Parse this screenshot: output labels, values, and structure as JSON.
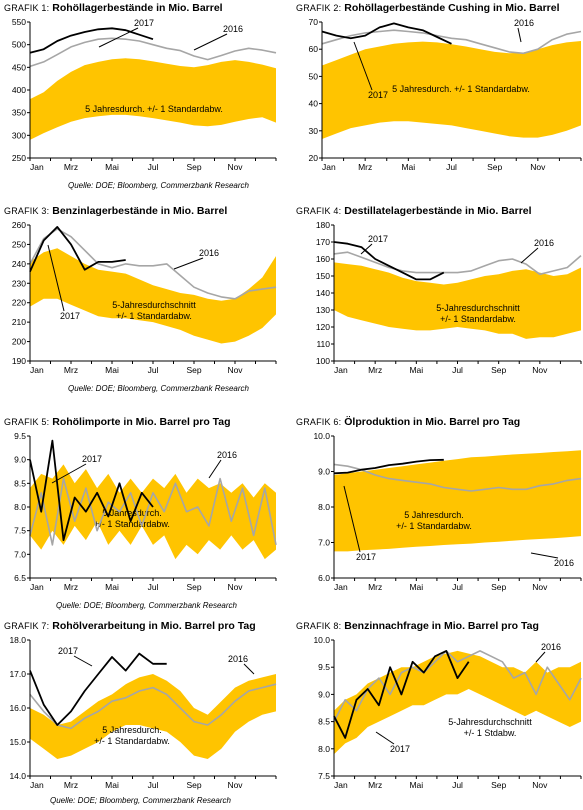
{
  "sources": {
    "row1": "Quelle: DOE; Bloomberg, Commerzbank Research",
    "row2": "Quelle: DOE; Bloomberg, Commerzbank Research",
    "row3": "Quelle: DOE; Bloomberg, Commerzbank Research",
    "row4": "Quelle: DOE; Bloomberg, Commerzbank Research"
  },
  "colors": {
    "band": "#FFC400",
    "y2017": "#000000",
    "y2016": "#A6A6A6",
    "axis": "#000000"
  },
  "chart_data": [
    {
      "type": "area",
      "prefix": "GRAFIK 1:",
      "title": "Rohöllagerbestände in Mio. Barrel",
      "x_ticks": [
        "Jan",
        "Mrz",
        "Mai",
        "Jul",
        "Sep",
        "Nov"
      ],
      "ylim": [
        250,
        550
      ],
      "y_ticks": [
        250,
        300,
        350,
        400,
        450,
        500,
        550
      ],
      "band_label": [
        "5 Jahresdurch. +/- 1 Standardabw."
      ],
      "band_upper": [
        380,
        395,
        420,
        440,
        455,
        462,
        468,
        470,
        468,
        463,
        458,
        453,
        450,
        455,
        462,
        466,
        462,
        456,
        448
      ],
      "band_lower": [
        290,
        305,
        318,
        330,
        338,
        342,
        345,
        345,
        342,
        338,
        333,
        328,
        322,
        320,
        323,
        330,
        336,
        340,
        328
      ],
      "series": [
        {
          "name": "2016",
          "values": [
            452,
            462,
            478,
            495,
            505,
            512,
            514,
            512,
            508,
            500,
            492,
            487,
            475,
            467,
            476,
            486,
            492,
            488,
            482
          ]
        },
        {
          "name": "2017",
          "values": [
            482,
            490,
            508,
            520,
            528,
            534,
            536,
            532,
            522,
            512,
            null,
            null,
            null,
            null,
            null,
            null,
            null,
            null,
            null
          ]
        }
      ],
      "annotations": [
        {
          "text": "2017",
          "series": "2017"
        },
        {
          "text": "2016",
          "series": "2016"
        }
      ]
    },
    {
      "type": "area",
      "prefix": "GRAFIK 2:",
      "title": "Rohöllagerbestände Cushing in Mio. Barrel",
      "x_ticks": [
        "Jan",
        "Mrz",
        "Mai",
        "Jul",
        "Sep",
        "Nov"
      ],
      "ylim": [
        20,
        70
      ],
      "y_ticks": [
        20,
        30,
        40,
        50,
        60,
        70
      ],
      "band_label": [
        "5 Jahresdurch. +/- 1 Standardabw."
      ],
      "band_upper": [
        54,
        56,
        58,
        60,
        61,
        62,
        62.5,
        62.8,
        62.5,
        61.8,
        61,
        60,
        59,
        58.5,
        58.8,
        60,
        61.5,
        62.5,
        63
      ],
      "band_lower": [
        27,
        29,
        31,
        32,
        33,
        33.5,
        33.5,
        33,
        32.5,
        32,
        31,
        30,
        29,
        28,
        27.5,
        27.5,
        28.5,
        30,
        32
      ],
      "series": [
        {
          "name": "2016",
          "values": [
            62,
            63.5,
            65,
            66,
            66.5,
            67,
            66.5,
            66,
            65,
            64,
            63.5,
            62,
            60.5,
            59,
            58.5,
            60,
            63.5,
            65.5,
            66.5
          ]
        },
        {
          "name": "2017",
          "values": [
            66.5,
            65,
            64,
            65,
            68,
            69.5,
            68,
            67,
            64.5,
            62,
            null,
            null,
            null,
            null,
            null,
            null,
            null,
            null,
            null
          ]
        }
      ],
      "annotations": [
        {
          "text": "2017",
          "series": "2017"
        },
        {
          "text": "2016",
          "series": "2016"
        }
      ]
    },
    {
      "type": "area",
      "prefix": "GRAFIK 3:",
      "title": "Benzinlagerbestände in Mio. Barrel",
      "x_ticks": [
        "Jan",
        "Mrz",
        "Mai",
        "Jul",
        "Sep",
        "Nov"
      ],
      "ylim": [
        190,
        260
      ],
      "y_ticks": [
        190,
        200,
        210,
        220,
        230,
        240,
        250,
        260
      ],
      "band_label": [
        "5-Jahresdurchschnitt",
        "+/- 1 Standardabw."
      ],
      "band_upper": [
        241,
        246,
        248,
        244,
        240,
        237,
        236,
        235,
        232,
        229,
        227,
        225,
        224,
        222,
        221,
        222,
        227,
        233,
        244
      ],
      "band_lower": [
        218,
        222,
        222,
        219,
        216,
        213,
        212,
        212,
        211,
        210,
        208,
        206,
        203,
        201,
        199,
        200,
        203,
        207,
        214
      ],
      "series": [
        {
          "name": "2016",
          "values": [
            240,
            253,
            258,
            254,
            247,
            240,
            238,
            240,
            239,
            239,
            240,
            234,
            228,
            225,
            223,
            222,
            226,
            227,
            228
          ]
        },
        {
          "name": "2017",
          "values": [
            236,
            252,
            259,
            250,
            237,
            241,
            241,
            242,
            null,
            null,
            null,
            null,
            null,
            null,
            null,
            null,
            null,
            null,
            null
          ]
        }
      ],
      "annotations": [
        {
          "text": "2017",
          "series": "2017"
        },
        {
          "text": "2016",
          "series": "2016"
        }
      ]
    },
    {
      "type": "area",
      "prefix": "GRAFIK 4:",
      "title": "Destillatelagerbestände in Mio. Barrel",
      "x_ticks": [
        "Jan",
        "Mrz",
        "Mai",
        "Jul",
        "Sep",
        "Nov"
      ],
      "ylim": [
        100,
        180
      ],
      "y_ticks": [
        100,
        110,
        120,
        130,
        140,
        150,
        160,
        170,
        180
      ],
      "band_label": [
        "5-Jahresdurchschnitt",
        "+/- 1 Standardabw."
      ],
      "band_upper": [
        158,
        157,
        156,
        154,
        152,
        149,
        147,
        146,
        145,
        146,
        148,
        150,
        151,
        153,
        154,
        152,
        150,
        151,
        155
      ],
      "band_lower": [
        130,
        126,
        124,
        122,
        120,
        119,
        118,
        118,
        119,
        120,
        119,
        118,
        116,
        116,
        113,
        114,
        114,
        116,
        118
      ],
      "series": [
        {
          "name": "2016",
          "values": [
            163,
            164,
            161,
            158,
            155,
            153,
            152,
            152,
            152,
            152,
            153,
            156,
            159,
            160,
            157,
            151,
            153,
            155,
            162
          ]
        },
        {
          "name": "2017",
          "values": [
            170,
            169,
            167,
            160,
            156,
            152,
            148,
            148,
            152,
            null,
            null,
            null,
            null,
            null,
            null,
            null,
            null,
            null,
            null
          ]
        }
      ],
      "annotations": [
        {
          "text": "2017",
          "series": "2017"
        },
        {
          "text": "2016",
          "series": "2016"
        }
      ]
    },
    {
      "type": "area",
      "prefix": "GRAFIK 5:",
      "title": "Rohölimporte in Mio. Barrel pro Tag",
      "x_ticks": [
        "Jan",
        "Mrz",
        "Mai",
        "Jul",
        "Sep",
        "Nov"
      ],
      "ylim": [
        6.5,
        9.5
      ],
      "y_ticks": [
        6.5,
        7.0,
        7.5,
        8.0,
        8.5,
        9.0,
        9.5
      ],
      "band_label": [
        "5 Jahresdurch.",
        "+/- 1 Standardabw."
      ],
      "band_upper": [
        8.4,
        8.7,
        8.6,
        8.9,
        8.5,
        8.8,
        8.4,
        8.7,
        8.3,
        8.6,
        8.3,
        8.6,
        8.4,
        8.7,
        8.3,
        8.6,
        8.4,
        8.5,
        8.3,
        8.5,
        8.2,
        8.5,
        8.3
      ],
      "band_lower": [
        7.4,
        7.1,
        7.5,
        7.2,
        7.6,
        7.3,
        7.7,
        7.2,
        7.5,
        7.2,
        7.6,
        7.2,
        7.4,
        6.9,
        7.2,
        7.0,
        7.3,
        7.1,
        7.4,
        7.1,
        7.3,
        6.9,
        7.1
      ],
      "series": [
        {
          "name": "2016",
          "values": [
            7.4,
            8.3,
            7.2,
            8.6,
            7.7,
            8.4,
            7.5,
            8.1,
            7.9,
            8.3,
            7.6,
            8.3,
            7.9,
            8.5,
            7.9,
            8.0,
            7.6,
            8.6,
            7.7,
            8.4,
            7.4,
            8.4,
            7.2
          ]
        },
        {
          "name": "2017",
          "values": [
            9.0,
            7.9,
            9.4,
            7.3,
            8.2,
            7.9,
            8.3,
            7.8,
            8.5,
            7.7,
            8.3,
            8.0,
            null,
            null,
            null,
            null,
            null,
            null,
            null,
            null,
            null,
            null,
            null
          ]
        }
      ],
      "annotations": [
        {
          "text": "2017",
          "series": "2017"
        },
        {
          "text": "2016",
          "series": "2016"
        }
      ]
    },
    {
      "type": "area",
      "prefix": "GRAFIK 6:",
      "title": "Ölproduktion in Mio. Barrel pro Tag",
      "x_ticks": [
        "Jan",
        "Mrz",
        "Mai",
        "Jul",
        "Sep",
        "Nov"
      ],
      "ylim": [
        6.0,
        10.0
      ],
      "y_ticks": [
        6.0,
        7.0,
        8.0,
        9.0,
        10.0
      ],
      "band_label": [
        "5 Jahresdurch.",
        "+/- 1 Standardabw."
      ],
      "band_upper": [
        8.9,
        8.95,
        9.0,
        9.05,
        9.1,
        9.15,
        9.2,
        9.25,
        9.3,
        9.35,
        9.4,
        9.42,
        9.45,
        9.48,
        9.5,
        9.52,
        9.55,
        9.57,
        9.6
      ],
      "band_lower": [
        6.75,
        6.75,
        6.78,
        6.8,
        6.82,
        6.85,
        6.88,
        6.9,
        6.93,
        6.95,
        6.97,
        7.0,
        7.02,
        7.05,
        7.08,
        7.1,
        7.12,
        7.15,
        7.18
      ],
      "series": [
        {
          "name": "2016",
          "values": [
            9.2,
            9.15,
            9.05,
            8.9,
            8.8,
            8.75,
            8.7,
            8.65,
            8.55,
            8.5,
            8.45,
            8.5,
            8.55,
            8.5,
            8.5,
            8.6,
            8.65,
            8.75,
            8.8
          ]
        },
        {
          "name": "2017",
          "values": [
            8.95,
            8.97,
            9.05,
            9.1,
            9.18,
            9.22,
            9.28,
            9.32,
            9.33,
            null,
            null,
            null,
            null,
            null,
            null,
            null,
            null,
            null,
            null
          ]
        }
      ],
      "annotations": [
        {
          "text": "2017",
          "series": "2017"
        },
        {
          "text": "2016",
          "series": "2016"
        }
      ]
    },
    {
      "type": "area",
      "prefix": "GRAFIK 7:",
      "title": "Rohölverarbeitung in Mio. Barrel pro Tag",
      "x_ticks": [
        "Jan",
        "Mrz",
        "Mai",
        "Jul",
        "Sep",
        "Nov"
      ],
      "ylim": [
        14.0,
        18.0
      ],
      "y_ticks": [
        14.0,
        15.0,
        16.0,
        17.0,
        18.0
      ],
      "band_label": [
        "5 Jahresdurch.",
        "+/- 1 Standardabw."
      ],
      "band_upper": [
        16.0,
        15.8,
        15.5,
        15.6,
        15.9,
        16.2,
        16.4,
        16.7,
        16.9,
        17.0,
        16.8,
        16.5,
        16.0,
        15.8,
        16.2,
        16.6,
        16.8,
        16.9,
        17.0
      ],
      "band_lower": [
        15.1,
        14.8,
        14.5,
        14.6,
        14.8,
        15.0,
        15.3,
        15.5,
        15.5,
        15.4,
        15.3,
        15.0,
        14.6,
        14.5,
        14.8,
        15.3,
        15.6,
        15.8,
        15.9
      ],
      "series": [
        {
          "name": "2016",
          "values": [
            16.4,
            15.9,
            15.5,
            15.4,
            15.7,
            15.9,
            16.2,
            16.3,
            16.5,
            16.6,
            16.4,
            16.0,
            15.6,
            15.5,
            15.8,
            16.2,
            16.5,
            16.6,
            16.7
          ]
        },
        {
          "name": "2017",
          "values": [
            17.1,
            16.1,
            15.5,
            15.9,
            16.5,
            17.0,
            17.5,
            17.1,
            17.6,
            17.3,
            17.3,
            null,
            null,
            null,
            null,
            null,
            null,
            null,
            null
          ]
        }
      ],
      "annotations": [
        {
          "text": "2017",
          "series": "2017"
        },
        {
          "text": "2016",
          "series": "2016"
        }
      ]
    },
    {
      "type": "area",
      "prefix": "GRAFIK 8:",
      "title": "Benzinnachfrage in Mio. Barrel pro Tag",
      "x_ticks": [
        "Jan",
        "Mrz",
        "Mai",
        "Jul",
        "Sep",
        "Nov"
      ],
      "ylim": [
        7.5,
        10.0
      ],
      "y_ticks": [
        7.5,
        8.0,
        8.5,
        9.0,
        9.5,
        10.0
      ],
      "band_label": [
        "5-Jahresdurchschnitt",
        "+/- 1 Stdabw."
      ],
      "band_upper": [
        8.7,
        8.9,
        9.0,
        9.2,
        9.3,
        9.4,
        9.5,
        9.5,
        9.6,
        9.7,
        9.75,
        9.8,
        9.75,
        9.7,
        9.6,
        9.5,
        9.5,
        9.4,
        9.6,
        9.4,
        9.5,
        9.5,
        9.6
      ],
      "band_lower": [
        7.9,
        8.1,
        8.2,
        8.4,
        8.5,
        8.6,
        8.7,
        8.8,
        8.8,
        8.9,
        9.0,
        9.0,
        9.1,
        9.0,
        8.9,
        8.8,
        8.7,
        8.6,
        8.7,
        8.6,
        8.5,
        8.4,
        8.5
      ],
      "series": [
        {
          "name": "2016",
          "values": [
            8.5,
            8.9,
            8.7,
            9.1,
            9.3,
            9.0,
            9.4,
            9.5,
            9.4,
            9.6,
            9.8,
            9.6,
            9.7,
            9.8,
            9.7,
            9.6,
            9.3,
            9.4,
            9.0,
            9.5,
            9.2,
            8.9,
            9.3
          ]
        },
        {
          "name": "2017",
          "values": [
            8.6,
            8.2,
            8.9,
            9.1,
            8.8,
            9.5,
            9.0,
            9.6,
            9.4,
            9.7,
            9.8,
            9.3,
            9.6,
            null,
            null,
            null,
            null,
            null,
            null,
            null,
            null,
            null,
            null
          ]
        }
      ],
      "annotations": [
        {
          "text": "2017",
          "series": "2017"
        },
        {
          "text": "2016",
          "series": "2016"
        }
      ]
    }
  ]
}
